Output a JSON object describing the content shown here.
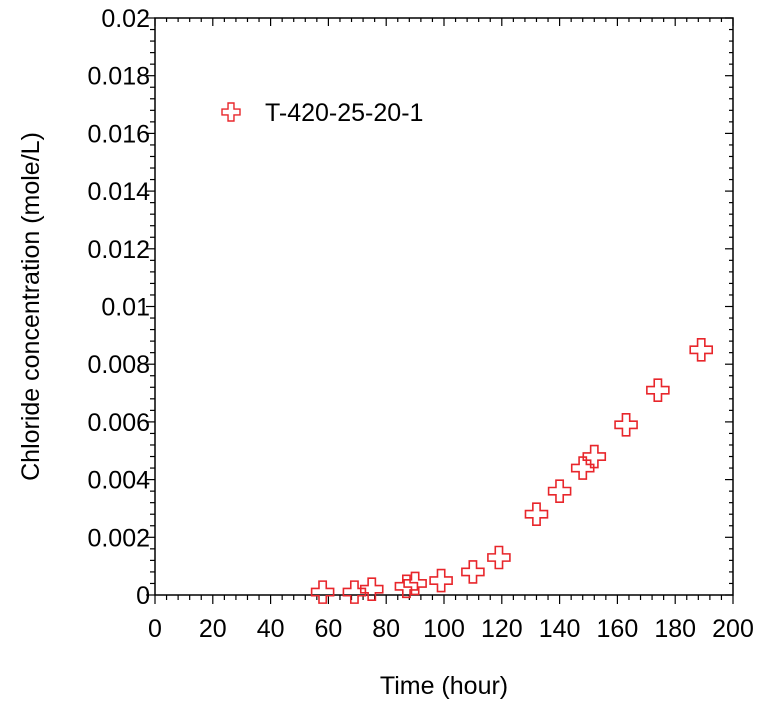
{
  "chart_data": {
    "type": "scatter",
    "xlabel": "Time (hour)",
    "ylabel": "Chloride concentration (mole/L)",
    "xlim": [
      0,
      200
    ],
    "ylim": [
      0,
      0.02
    ],
    "xticks": [
      "0",
      "20",
      "40",
      "60",
      "80",
      "100",
      "120",
      "140",
      "160",
      "180",
      "200"
    ],
    "yticks": [
      "0",
      "0.002",
      "0.004",
      "0.006",
      "0.008",
      "0.01",
      "0.012",
      "0.014",
      "0.016",
      "0.018",
      "0.02"
    ],
    "grid": false,
    "legend_position": "top-left",
    "marker": "open-cross",
    "series": [
      {
        "name": "T-420-25-20-1",
        "color": "#e8262b",
        "x": [
          58,
          69,
          75,
          87,
          90,
          99,
          110,
          119,
          132,
          140,
          148,
          152,
          163,
          174,
          189
        ],
        "y": [
          0.0001,
          0.0001,
          0.0002,
          0.0003,
          0.0004,
          0.0005,
          0.0008,
          0.0013,
          0.0028,
          0.0036,
          0.0044,
          0.0048,
          0.0059,
          0.0071,
          0.0085
        ]
      }
    ]
  }
}
